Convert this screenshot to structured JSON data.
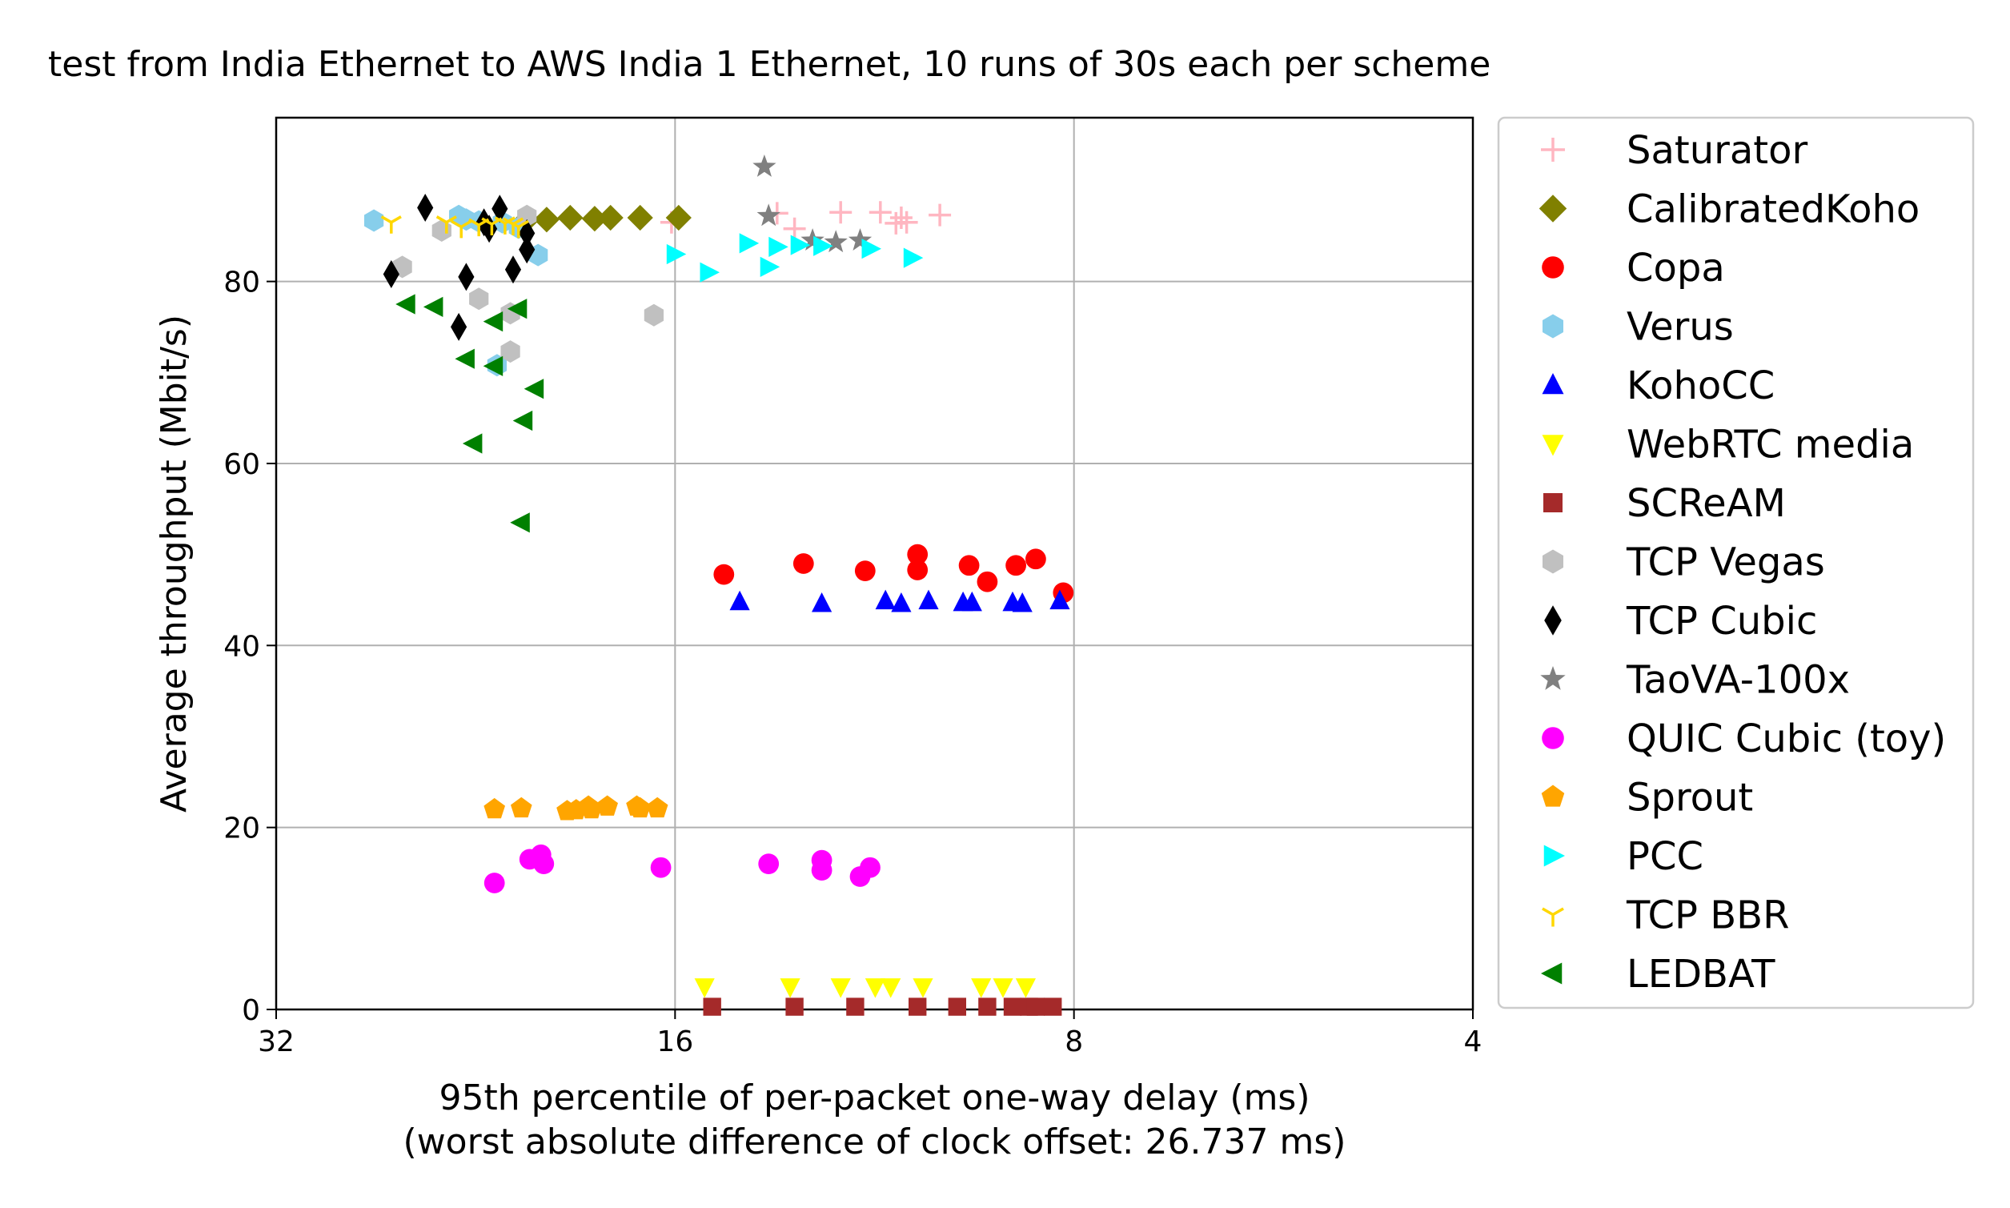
{
  "chart_data": {
    "type": "scatter",
    "title": "test from India Ethernet to AWS India 1 Ethernet, 10 runs of 30s each per scheme",
    "xlabel": "95th percentile of per-packet one-way delay (ms)",
    "xlabel2": "(worst absolute difference of clock offset: 26.737 ms)",
    "ylabel": "Average throughput (Mbit/s)",
    "x_scale": "log2",
    "x_inverted": true,
    "xlim": [
      32,
      4
    ],
    "ylim": [
      0,
      98
    ],
    "xticks": [
      32,
      16,
      8,
      4
    ],
    "xtick_labels": [
      "32",
      "16",
      "8",
      "4"
    ],
    "yticks": [
      0,
      20,
      40,
      60,
      80
    ],
    "ytick_labels": [
      "0",
      "20",
      "40",
      "60",
      "80"
    ],
    "grid": true,
    "legend_position": "outside-right",
    "series": [
      {
        "name": "Saturator",
        "marker": "plus",
        "color": "#ffb6c1",
        "points": [
          [
            16.1,
            86.5
          ],
          [
            13.4,
            87.5
          ],
          [
            13.0,
            85.8
          ],
          [
            12.0,
            87.6
          ],
          [
            11.2,
            87.6
          ],
          [
            10.9,
            86.4
          ],
          [
            10.8,
            87.0
          ],
          [
            10.7,
            86.5
          ],
          [
            10.1,
            87.3
          ]
        ]
      },
      {
        "name": "CalibratedKoho",
        "marker": "diamond",
        "color": "#808000",
        "points": [
          [
            20.7,
            86.8
          ],
          [
            20.0,
            86.8
          ],
          [
            19.2,
            87.0
          ],
          [
            18.4,
            86.9
          ],
          [
            17.9,
            87.0
          ],
          [
            17.0,
            87.0
          ],
          [
            15.9,
            87.0
          ]
        ]
      },
      {
        "name": "Copa",
        "marker": "circle",
        "color": "#ff0000",
        "points": [
          [
            14.7,
            47.8
          ],
          [
            12.8,
            49.0
          ],
          [
            11.5,
            48.2
          ],
          [
            10.5,
            50.0
          ],
          [
            10.5,
            48.3
          ],
          [
            9.6,
            48.8
          ],
          [
            9.3,
            47.0
          ],
          [
            8.85,
            48.8
          ],
          [
            8.55,
            49.5
          ],
          [
            8.15,
            45.8
          ]
        ]
      },
      {
        "name": "Verus",
        "marker": "hexagon",
        "color": "#87ceeb",
        "points": [
          [
            27.0,
            86.7
          ],
          [
            23.3,
            87.2
          ],
          [
            23.0,
            86.8
          ],
          [
            22.5,
            86.6
          ],
          [
            21.6,
            86.5
          ],
          [
            21.0,
            85.9
          ],
          [
            20.3,
            82.9
          ],
          [
            21.8,
            70.8
          ]
        ]
      },
      {
        "name": "KohoCC",
        "marker": "triangle-up",
        "color": "#0000ff",
        "points": [
          [
            14.3,
            44.8
          ],
          [
            12.4,
            44.6
          ],
          [
            11.1,
            44.9
          ],
          [
            10.8,
            44.6
          ],
          [
            10.3,
            44.9
          ],
          [
            9.7,
            44.7
          ],
          [
            9.55,
            44.7
          ],
          [
            8.9,
            44.7
          ],
          [
            8.75,
            44.6
          ],
          [
            8.2,
            44.9
          ]
        ]
      },
      {
        "name": "WebRTC media",
        "marker": "triangle-down",
        "color": "#ffff00",
        "points": [
          [
            15.2,
            2.5
          ],
          [
            13.1,
            2.5
          ],
          [
            12.0,
            2.5
          ],
          [
            11.3,
            2.5
          ],
          [
            11.0,
            2.5
          ],
          [
            10.4,
            2.5
          ],
          [
            9.4,
            2.5
          ],
          [
            9.05,
            2.5
          ],
          [
            8.7,
            2.5
          ]
        ]
      },
      {
        "name": "SCReAM",
        "marker": "square",
        "color": "#a52a2a",
        "points": [
          [
            15.0,
            0.3
          ],
          [
            13.0,
            0.3
          ],
          [
            11.7,
            0.3
          ],
          [
            10.5,
            0.3
          ],
          [
            9.8,
            0.3
          ],
          [
            9.3,
            0.3
          ],
          [
            8.9,
            0.3
          ],
          [
            8.65,
            0.3
          ],
          [
            8.55,
            0.3
          ],
          [
            8.3,
            0.3
          ]
        ]
      },
      {
        "name": "TCP Vegas",
        "marker": "hexagon",
        "color": "#c0c0c0",
        "points": [
          [
            25.7,
            81.6
          ],
          [
            24.0,
            85.6
          ],
          [
            22.5,
            78.1
          ],
          [
            21.3,
            76.5
          ],
          [
            21.3,
            72.3
          ],
          [
            20.7,
            87.2
          ],
          [
            16.6,
            76.3
          ]
        ]
      },
      {
        "name": "TCP Cubic",
        "marker": "thin-diamond",
        "color": "#000000",
        "points": [
          [
            26.2,
            80.8
          ],
          [
            24.7,
            88.1
          ],
          [
            23.3,
            75.0
          ],
          [
            23.0,
            80.5
          ],
          [
            22.3,
            86.5
          ],
          [
            22.1,
            85.8
          ],
          [
            21.7,
            88.0
          ],
          [
            21.2,
            81.3
          ],
          [
            20.7,
            83.5
          ],
          [
            20.7,
            85.3
          ]
        ]
      },
      {
        "name": "TaoVA-100x",
        "marker": "star",
        "color": "#808080",
        "points": [
          [
            13.7,
            92.6
          ],
          [
            13.6,
            87.2
          ],
          [
            12.6,
            84.5
          ],
          [
            12.1,
            84.3
          ],
          [
            11.6,
            84.5
          ]
        ]
      },
      {
        "name": "QUIC Cubic (toy)",
        "marker": "circle",
        "color": "#ff00ff",
        "points": [
          [
            21.9,
            13.9
          ],
          [
            20.6,
            16.5
          ],
          [
            20.2,
            17.0
          ],
          [
            20.1,
            16.0
          ],
          [
            16.4,
            15.6
          ],
          [
            13.6,
            16.0
          ],
          [
            12.4,
            15.3
          ],
          [
            12.4,
            16.4
          ],
          [
            11.6,
            14.6
          ],
          [
            11.4,
            15.6
          ]
        ]
      },
      {
        "name": "Sprout",
        "marker": "pentagon",
        "color": "#ffa500",
        "points": [
          [
            21.9,
            22.0
          ],
          [
            20.9,
            22.1
          ],
          [
            19.3,
            21.8
          ],
          [
            19.0,
            21.9
          ],
          [
            18.6,
            22.3
          ],
          [
            18.5,
            22.0
          ],
          [
            18.0,
            22.3
          ],
          [
            17.1,
            22.3
          ],
          [
            17.0,
            22.1
          ],
          [
            16.5,
            22.1
          ]
        ]
      },
      {
        "name": "PCC",
        "marker": "triangle-right",
        "color": "#00ffff",
        "points": [
          [
            16.0,
            83.0
          ],
          [
            15.1,
            81.0
          ],
          [
            14.1,
            84.2
          ],
          [
            13.6,
            81.6
          ],
          [
            13.4,
            83.8
          ],
          [
            12.9,
            84.0
          ],
          [
            12.4,
            83.9
          ],
          [
            11.4,
            83.6
          ],
          [
            10.6,
            82.6
          ]
        ]
      },
      {
        "name": "TCP BBR",
        "marker": "tri-down",
        "color": "#ffd700",
        "points": [
          [
            26.2,
            86.5
          ],
          [
            23.8,
            86.5
          ],
          [
            23.2,
            86.0
          ],
          [
            22.5,
            86.2
          ],
          [
            22.0,
            86.3
          ],
          [
            21.5,
            86.4
          ],
          [
            21.2,
            86.3
          ],
          [
            21.0,
            86.0
          ]
        ]
      },
      {
        "name": "LEDBAT",
        "marker": "triangle-left",
        "color": "#008000",
        "points": [
          [
            25.5,
            77.5
          ],
          [
            24.3,
            77.2
          ],
          [
            23.0,
            71.5
          ],
          [
            22.7,
            62.2
          ],
          [
            21.9,
            75.6
          ],
          [
            21.9,
            70.7
          ],
          [
            21.0,
            77.0
          ],
          [
            20.8,
            64.7
          ],
          [
            20.4,
            68.2
          ],
          [
            20.9,
            53.5
          ]
        ]
      }
    ]
  }
}
